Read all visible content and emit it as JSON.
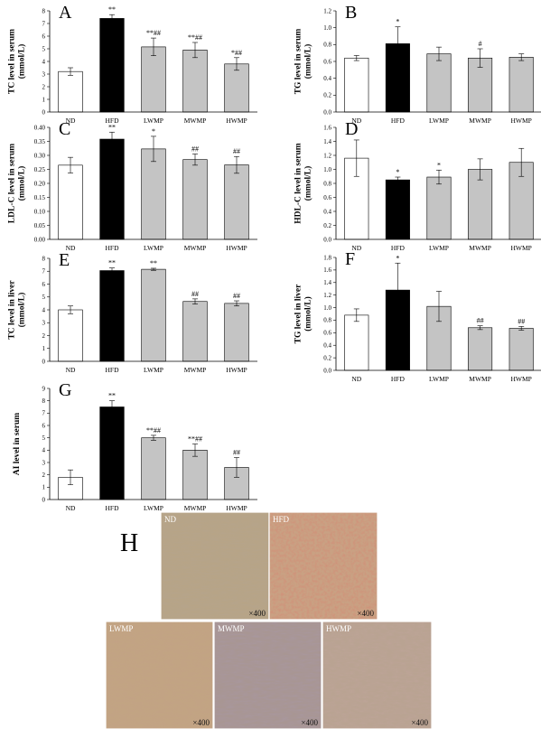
{
  "chart_data": [
    {
      "id": "A",
      "type": "bar",
      "panel_label": "A",
      "ylabel_lines": [
        "TC level in serum",
        "(mmol/L)"
      ],
      "categories": [
        "ND",
        "HFD",
        "LWMP",
        "MWMP",
        "HWMP"
      ],
      "values": [
        3.2,
        7.4,
        5.15,
        4.9,
        3.8
      ],
      "errors": [
        0.3,
        0.3,
        0.7,
        0.6,
        0.5
      ],
      "annotations": [
        "",
        "**",
        "**##",
        "**##",
        "*##"
      ],
      "ylim": [
        0,
        8
      ],
      "yticks": [
        "0",
        "1",
        "2",
        "3",
        "4",
        "5",
        "6",
        "7",
        "8"
      ]
    },
    {
      "id": "B",
      "type": "bar",
      "panel_label": "B",
      "ylabel_lines": [
        "TG level in serum",
        "(mmol/L)"
      ],
      "categories": [
        "ND",
        "HFD",
        "LWMP",
        "MWMP",
        "HWMP"
      ],
      "values": [
        0.64,
        0.81,
        0.69,
        0.64,
        0.65
      ],
      "errors": [
        0.03,
        0.2,
        0.08,
        0.11,
        0.04
      ],
      "annotations": [
        "",
        "*",
        "",
        "#",
        ""
      ],
      "ylim": [
        0,
        1.2
      ],
      "yticks": [
        "0.0",
        "0.2",
        "0.4",
        "0.6",
        "0.8",
        "1.0",
        "1.2"
      ]
    },
    {
      "id": "C",
      "type": "bar",
      "panel_label": "C",
      "ylabel_lines": [
        "LDL-C level in serum",
        "(mmol/L)"
      ],
      "categories": [
        "ND",
        "HFD",
        "LWMP",
        "MWMP",
        "HWMP"
      ],
      "values": [
        0.265,
        0.358,
        0.323,
        0.285,
        0.266
      ],
      "errors": [
        0.028,
        0.025,
        0.045,
        0.02,
        0.03
      ],
      "annotations": [
        "",
        "**",
        "*",
        "##",
        "##"
      ],
      "ylim": [
        0,
        0.4
      ],
      "yticks": [
        "0.00",
        "0.05",
        "0.10",
        "0.15",
        "0.20",
        "0.25",
        "0.30",
        "0.35",
        "0.40"
      ]
    },
    {
      "id": "D",
      "type": "bar",
      "panel_label": "D",
      "ylabel_lines": [
        "HDL-C level in serum",
        "(mmol/L)"
      ],
      "categories": [
        "ND",
        "HFD",
        "LWMP",
        "MWMP",
        "HWMP"
      ],
      "values": [
        1.16,
        0.85,
        0.89,
        1.0,
        1.1
      ],
      "errors": [
        0.26,
        0.04,
        0.1,
        0.15,
        0.2
      ],
      "annotations": [
        "",
        "*",
        "*",
        "",
        ""
      ],
      "ylim": [
        0,
        1.6
      ],
      "yticks": [
        "0.0",
        "0.2",
        "0.4",
        "0.6",
        "0.8",
        "1.0",
        "1.2",
        "1.4",
        "1.6"
      ]
    },
    {
      "id": "E",
      "type": "bar",
      "panel_label": "E",
      "ylabel_lines": [
        "TC level in liver",
        "(mmol/L)"
      ],
      "categories": [
        "ND",
        "HFD",
        "LWMP",
        "MWMP",
        "HWMP"
      ],
      "values": [
        4.0,
        7.05,
        7.15,
        4.65,
        4.5
      ],
      "errors": [
        0.3,
        0.2,
        0.08,
        0.2,
        0.2
      ],
      "annotations": [
        "",
        "**",
        "**",
        "##",
        "##"
      ],
      "ylim": [
        0,
        8
      ],
      "yticks": [
        "0",
        "1",
        "2",
        "3",
        "4",
        "5",
        "6",
        "7",
        "8"
      ]
    },
    {
      "id": "F",
      "type": "bar",
      "panel_label": "F",
      "ylabel_lines": [
        "TG level in liver",
        "(mmol/L)"
      ],
      "categories": [
        "ND",
        "HFD",
        "LWMP",
        "MWMP",
        "HWMP"
      ],
      "values": [
        0.88,
        1.28,
        1.02,
        0.68,
        0.67
      ],
      "errors": [
        0.1,
        0.43,
        0.24,
        0.03,
        0.03
      ],
      "annotations": [
        "",
        "*",
        "",
        "##",
        "##"
      ],
      "ylim": [
        0,
        1.8
      ],
      "yticks": [
        "0.0",
        "0.2",
        "0.4",
        "0.6",
        "0.8",
        "1.0",
        "1.2",
        "1.4",
        "1.6",
        "1.8"
      ]
    },
    {
      "id": "G",
      "type": "bar",
      "panel_label": "G",
      "ylabel_lines": [
        "AI level in serum"
      ],
      "categories": [
        "ND",
        "HFD",
        "LWMP",
        "MWMP",
        "HWMP"
      ],
      "values": [
        1.8,
        7.5,
        5.0,
        4.0,
        2.6
      ],
      "errors": [
        0.6,
        0.5,
        0.2,
        0.5,
        0.8
      ],
      "annotations": [
        "",
        "**",
        "**##",
        "**##",
        "##"
      ],
      "ylim": [
        0,
        9
      ],
      "yticks": [
        "0",
        "1",
        "2",
        "3",
        "4",
        "5",
        "6",
        "7",
        "8",
        "9"
      ]
    }
  ],
  "colors": {
    "ND": "#ffffff",
    "HFD": "#000000",
    "treatment": "#c4c4c4"
  },
  "histology": {
    "panel_label": "H",
    "images": [
      {
        "label": "ND",
        "magnification": "×400",
        "tint": "#b7a487"
      },
      {
        "label": "HFD",
        "magnification": "×400",
        "tint": "#c9a183"
      },
      {
        "label": "LWMP",
        "magnification": "×400",
        "tint": "#c2a483"
      },
      {
        "label": "MWMP",
        "magnification": "×400",
        "tint": "#a89693"
      },
      {
        "label": "HWMP",
        "magnification": "×400",
        "tint": "#b9a392"
      }
    ]
  }
}
